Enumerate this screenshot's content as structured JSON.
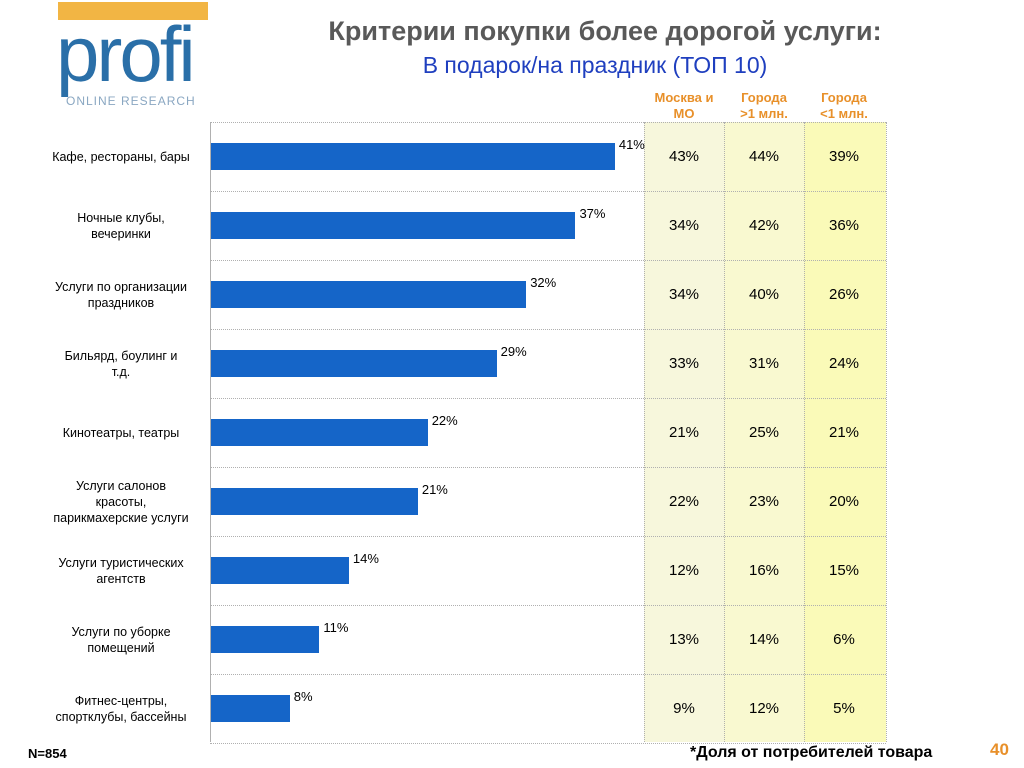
{
  "logo": {
    "word": "profi",
    "sub": "ONLINE RESEARCH"
  },
  "title": "Критерии покупки более дорогой услуги:",
  "subtitle": "В подарок/на праздник (ТОП 10)",
  "columns": [
    {
      "line1": "Москва и",
      "line2": "МО"
    },
    {
      "line1": "Города",
      "line2": ">1 млн."
    },
    {
      "line1": "Города",
      "line2": "<1 млн."
    }
  ],
  "chart_data": {
    "type": "bar",
    "orientation": "horizontal",
    "categories": [
      [
        "Кафе, рестораны, бары"
      ],
      [
        "Ночные клубы,",
        "вечеринки"
      ],
      [
        "Услуги по организации",
        "праздников"
      ],
      [
        "Бильярд, боулинг и",
        "т.д."
      ],
      [
        "Кинотеатры, театры"
      ],
      [
        "Услуги салонов",
        "красоты,",
        "парикмахерские услуги"
      ],
      [
        "Услуги туристических",
        "агентств"
      ],
      [
        "Услуги по уборке",
        "помещений"
      ],
      [
        "Фитнес-центры,",
        "спортклубы, бассейны"
      ]
    ],
    "values": [
      41,
      37,
      32,
      29,
      22,
      21,
      14,
      11,
      8
    ],
    "value_labels": [
      "41%",
      "37%",
      "32%",
      "29%",
      "22%",
      "21%",
      "14%",
      "11%",
      "8%"
    ],
    "bar_color": "#1565c8"
  },
  "table": [
    [
      "43%",
      "44%",
      "39%"
    ],
    [
      "34%",
      "42%",
      "36%"
    ],
    [
      "34%",
      "40%",
      "26%"
    ],
    [
      "33%",
      "31%",
      "24%"
    ],
    [
      "21%",
      "25%",
      "21%"
    ],
    [
      "22%",
      "23%",
      "20%"
    ],
    [
      "12%",
      "16%",
      "15%"
    ],
    [
      "13%",
      "14%",
      "6%"
    ],
    [
      "9%",
      "12%",
      "5%"
    ]
  ],
  "table_colors": [
    "#f7f7dc",
    "#f9f9d0",
    "#fafab8"
  ],
  "n_label": "N=854",
  "footnote": "*Доля  от потребителей товара",
  "page_number": "40"
}
